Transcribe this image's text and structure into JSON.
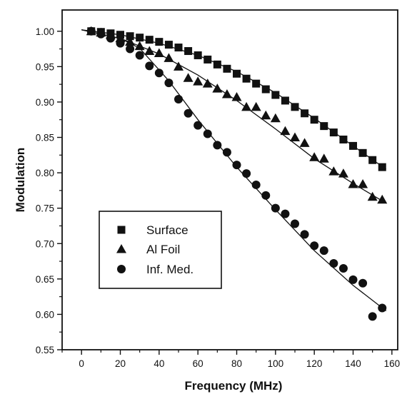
{
  "chart_data": {
    "type": "scatter",
    "title": "",
    "xlabel": "Frequency (MHz)",
    "ylabel": "Modulation",
    "xlim": [
      -10,
      163
    ],
    "ylim": [
      0.55,
      1.03
    ],
    "x_ticks": [
      "0",
      "20",
      "40",
      "60",
      "80",
      "100",
      "120",
      "140",
      "160"
    ],
    "y_ticks": [
      "0.55",
      "0.60",
      "0.65",
      "0.70",
      "0.75",
      "0.80",
      "0.85",
      "0.90",
      "0.95",
      "1.00"
    ],
    "grid": false,
    "legend_position": "left-middle",
    "series": [
      {
        "name": "Surface",
        "marker": "square",
        "color": "#111111",
        "x": [
          5,
          10,
          15,
          20,
          25,
          30,
          35,
          40,
          45,
          50,
          55,
          60,
          65,
          70,
          75,
          80,
          85,
          90,
          95,
          100,
          105,
          110,
          115,
          120,
          125,
          130,
          135,
          140,
          145,
          150,
          155
        ],
        "y": [
          1.0,
          0.999,
          0.997,
          0.995,
          0.993,
          0.991,
          0.988,
          0.985,
          0.981,
          0.977,
          0.972,
          0.966,
          0.96,
          0.953,
          0.947,
          0.94,
          0.933,
          0.926,
          0.918,
          0.91,
          0.902,
          0.893,
          0.884,
          0.875,
          0.866,
          0.857,
          0.847,
          0.838,
          0.828,
          0.818,
          0.808
        ],
        "fit": [
          [
            0,
            1.002
          ],
          [
            20,
            0.995
          ],
          [
            40,
            0.983
          ],
          [
            60,
            0.966
          ],
          [
            80,
            0.943
          ],
          [
            100,
            0.913
          ],
          [
            120,
            0.877
          ],
          [
            140,
            0.838
          ],
          [
            157,
            0.805
          ]
        ]
      },
      {
        "name": "Al Foil",
        "marker": "triangle",
        "color": "#111111",
        "x": [
          5,
          10,
          15,
          20,
          25,
          30,
          35,
          40,
          45,
          50,
          55,
          60,
          65,
          70,
          75,
          80,
          85,
          90,
          95,
          100,
          105,
          110,
          115,
          120,
          125,
          130,
          135,
          140,
          145,
          150,
          155
        ],
        "y": [
          1.0,
          0.998,
          0.995,
          0.99,
          0.985,
          0.979,
          0.972,
          0.969,
          0.962,
          0.95,
          0.934,
          0.929,
          0.926,
          0.919,
          0.911,
          0.907,
          0.893,
          0.893,
          0.881,
          0.877,
          0.859,
          0.85,
          0.842,
          0.822,
          0.82,
          0.802,
          0.799,
          0.784,
          0.784,
          0.766,
          0.762
        ],
        "fit": [
          [
            0,
            1.002
          ],
          [
            20,
            0.99
          ],
          [
            40,
            0.968
          ],
          [
            60,
            0.938
          ],
          [
            80,
            0.902
          ],
          [
            100,
            0.862
          ],
          [
            120,
            0.82
          ],
          [
            140,
            0.785
          ],
          [
            157,
            0.757
          ]
        ]
      },
      {
        "name": "Inf. Med.",
        "marker": "circle",
        "color": "#111111",
        "x": [
          5,
          10,
          15,
          20,
          25,
          30,
          35,
          40,
          45,
          50,
          55,
          60,
          65,
          70,
          75,
          80,
          85,
          90,
          95,
          100,
          105,
          110,
          115,
          120,
          125,
          130,
          135,
          140,
          145,
          150,
          155
        ],
        "y": [
          1.0,
          0.996,
          0.99,
          0.983,
          0.975,
          0.966,
          0.951,
          0.941,
          0.927,
          0.904,
          0.884,
          0.867,
          0.855,
          0.839,
          0.829,
          0.811,
          0.799,
          0.783,
          0.768,
          0.75,
          0.742,
          0.728,
          0.713,
          0.697,
          0.69,
          0.672,
          0.665,
          0.649,
          0.644,
          0.597,
          0.609
        ],
        "fit": [
          [
            0,
            1.002
          ],
          [
            20,
            0.99
          ],
          [
            30,
            0.976
          ],
          [
            45,
            0.93
          ],
          [
            60,
            0.875
          ],
          [
            80,
            0.808
          ],
          [
            100,
            0.748
          ],
          [
            120,
            0.69
          ],
          [
            140,
            0.641
          ],
          [
            157,
            0.605
          ]
        ]
      }
    ]
  }
}
